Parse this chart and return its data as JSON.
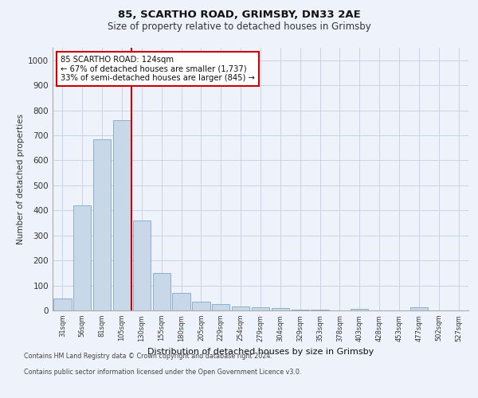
{
  "title1": "85, SCARTHO ROAD, GRIMSBY, DN33 2AE",
  "title2": "Size of property relative to detached houses in Grimsby",
  "xlabel": "Distribution of detached houses by size in Grimsby",
  "ylabel": "Number of detached properties",
  "categories": [
    "31sqm",
    "56sqm",
    "81sqm",
    "105sqm",
    "130sqm",
    "155sqm",
    "180sqm",
    "205sqm",
    "229sqm",
    "254sqm",
    "279sqm",
    "304sqm",
    "329sqm",
    "353sqm",
    "378sqm",
    "403sqm",
    "428sqm",
    "453sqm",
    "477sqm",
    "502sqm",
    "527sqm"
  ],
  "values": [
    48,
    420,
    685,
    760,
    360,
    150,
    70,
    36,
    25,
    16,
    12,
    8,
    3,
    2,
    1,
    5,
    1,
    1,
    12,
    1,
    0
  ],
  "bar_color": "#c8d8e8",
  "bar_edge_color": "#7fa8c8",
  "grid_color": "#c8d4e4",
  "annotation_text_line1": "85 SCARTHO ROAD: 124sqm",
  "annotation_text_line2": "← 67% of detached houses are smaller (1,737)",
  "annotation_text_line3": "33% of semi-detached houses are larger (845) →",
  "annotation_box_color": "#ffffff",
  "annotation_box_edge": "#cc0000",
  "vline_color": "#cc0000",
  "footer1": "Contains HM Land Registry data © Crown copyright and database right 2024.",
  "footer2": "Contains public sector information licensed under the Open Government Licence v3.0.",
  "ylim": [
    0,
    1050
  ],
  "yticks": [
    0,
    100,
    200,
    300,
    400,
    500,
    600,
    700,
    800,
    900,
    1000
  ],
  "bg_color": "#eef2fa"
}
